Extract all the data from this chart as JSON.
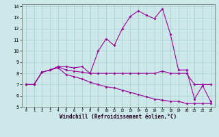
{
  "xlabel": "Windchill (Refroidissement éolien,°C)",
  "background_color": "#cce8e8",
  "grid_color": "#aacccc",
  "line_color": "#990099",
  "xlim": [
    -0.5,
    23.5
  ],
  "ylim": [
    5,
    14.2
  ],
  "yticks": [
    5,
    6,
    7,
    8,
    9,
    10,
    11,
    12,
    13,
    14
  ],
  "xticks": [
    0,
    1,
    2,
    3,
    4,
    5,
    6,
    7,
    8,
    9,
    10,
    11,
    12,
    13,
    14,
    15,
    16,
    17,
    18,
    19,
    20,
    21,
    22,
    23
  ],
  "x": [
    0,
    1,
    2,
    3,
    4,
    5,
    6,
    7,
    8,
    9,
    10,
    11,
    12,
    13,
    14,
    15,
    16,
    17,
    18,
    19,
    20,
    21,
    22,
    23
  ],
  "line1": [
    7.0,
    7.0,
    8.1,
    8.3,
    8.6,
    8.6,
    8.5,
    8.6,
    8.0,
    10.0,
    11.1,
    10.5,
    12.0,
    13.1,
    13.6,
    13.2,
    12.9,
    13.8,
    11.5,
    8.3,
    8.3,
    5.7,
    6.9,
    5.5
  ],
  "line2": [
    7.0,
    7.0,
    8.1,
    8.3,
    8.6,
    8.3,
    8.2,
    8.1,
    8.0,
    8.0,
    8.0,
    8.0,
    8.0,
    8.0,
    8.0,
    8.0,
    8.0,
    8.2,
    8.0,
    8.0,
    8.0,
    7.0,
    7.0,
    7.0
  ],
  "line3": [
    7.0,
    7.0,
    8.1,
    8.3,
    8.5,
    7.9,
    7.7,
    7.5,
    7.2,
    7.0,
    6.8,
    6.7,
    6.5,
    6.3,
    6.1,
    5.9,
    5.7,
    5.6,
    5.5,
    5.5,
    5.3,
    5.3,
    5.3,
    5.3
  ]
}
